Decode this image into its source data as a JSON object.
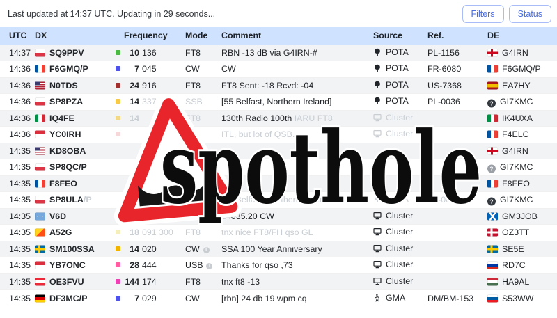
{
  "header": {
    "last_updated": "Last updated at 14:37 UTC. Updating in 29 seconds...",
    "filters_label": "Filters",
    "status_label": "Status"
  },
  "table": {
    "columns": [
      "UTC",
      "DX",
      "Frequency",
      "Mode",
      "Comment",
      "Source",
      "Ref.",
      "DE"
    ],
    "rows": [
      {
        "utc": "14:37",
        "flag": "pl",
        "call": "SQ9PPV",
        "call_suffix": "",
        "band": "#4cb944",
        "mhz": "10",
        "khz": "136",
        "mhz_faded": false,
        "khz_faded": false,
        "mode": "FT8",
        "mode_faded": false,
        "mode_info": false,
        "comment_pre": "",
        "comment": "RBN -13 dB via G4IRN-#",
        "comment_faded": false,
        "comment_tail": "",
        "source": "POTA",
        "source_icon": "tree",
        "source_faded": false,
        "ref": "PL-1156",
        "ref_faded": false,
        "de_flag": "gb-eng",
        "de": "G4IRN"
      },
      {
        "utc": "14:36",
        "flag": "fr",
        "call": "F6GMQ/P",
        "call_suffix": "",
        "band": "#4f52e8",
        "mhz": "7",
        "khz": "045",
        "mhz_faded": false,
        "khz_faded": false,
        "mode": "CW",
        "mode_faded": false,
        "mode_info": false,
        "comment_pre": "",
        "comment": "CW",
        "comment_faded": false,
        "comment_tail": "",
        "source": "POTA",
        "source_icon": "tree",
        "source_faded": false,
        "ref": "FR-6080",
        "ref_faded": false,
        "de_flag": "fr",
        "de": "F6GMQ/P"
      },
      {
        "utc": "14:36",
        "flag": "us",
        "call": "N0TDS",
        "call_suffix": "",
        "band": "#a03030",
        "mhz": "24",
        "khz": "916",
        "mhz_faded": false,
        "khz_faded": false,
        "mode": "FT8",
        "mode_faded": false,
        "mode_info": false,
        "comment_pre": "",
        "comment": "FT8 Sent: -18 Rcvd: -04",
        "comment_faded": false,
        "comment_tail": "",
        "source": "POTA",
        "source_icon": "tree",
        "source_faded": false,
        "ref": "US-7368",
        "ref_faded": false,
        "de_flag": "es",
        "de": "EA7HY"
      },
      {
        "utc": "14:36",
        "flag": "pl",
        "call": "SP8PZA",
        "call_suffix": "",
        "band": "#f7c948",
        "mhz": "14",
        "khz": "337",
        "mhz_faded": false,
        "khz_faded": true,
        "mode": "SSB",
        "mode_faded": true,
        "mode_info": false,
        "comment_pre": "",
        "comment": "[55 Belfast, Northern Ireland]",
        "comment_faded": false,
        "comment_tail": "",
        "source": "POTA",
        "source_icon": "tree",
        "source_faded": false,
        "ref": "PL-0036",
        "ref_faded": false,
        "de_flag": "q-black",
        "de": "GI7KMC"
      },
      {
        "utc": "14:36",
        "flag": "it",
        "call": "IQ4FE",
        "call_suffix": "",
        "band": "#f2d98a",
        "mhz": "14",
        "khz": "",
        "mhz_faded": true,
        "khz_faded": true,
        "mode": "FT8",
        "mode_faded": true,
        "mode_info": false,
        "comment_pre": "",
        "comment": "130th Radio 100th ",
        "comment_faded": false,
        "comment_tail": "IARU FT8",
        "source": "Cluster",
        "source_icon": "monitor",
        "source_faded": true,
        "ref": "",
        "ref_faded": false,
        "de_flag": "it",
        "de": "IK4UXA"
      },
      {
        "utc": "14:36",
        "flag": "id",
        "call": "YC0IRH",
        "call_suffix": "",
        "band": "#f6d7da",
        "mhz": "",
        "khz": "",
        "mhz_faded": true,
        "khz_faded": true,
        "mode": "",
        "mode_faded": true,
        "mode_info": false,
        "comment_pre": "",
        "comment": "ITL, but lot of QSB...",
        "comment_faded": true,
        "comment_tail": "",
        "source": "Cluster",
        "source_icon": "monitor",
        "source_faded": true,
        "ref": "",
        "ref_faded": false,
        "de_flag": "fr",
        "de": "F4ELC"
      },
      {
        "utc": "14:35",
        "flag": "us",
        "call": "KD8OBA",
        "call_suffix": "",
        "band": "",
        "mhz": "",
        "khz": "",
        "mhz_faded": false,
        "khz_faded": false,
        "mode": "",
        "mode_faded": false,
        "mode_info": false,
        "comment_pre": "",
        "comment": "",
        "comment_faded": false,
        "comment_tail": "",
        "source": "",
        "source_icon": "",
        "source_faded": false,
        "ref": "",
        "ref_faded": false,
        "de_flag": "gb-eng",
        "de": "G4IRN"
      },
      {
        "utc": "14:35",
        "flag": "pl",
        "call": "SP8QC/P",
        "call_suffix": "",
        "band": "",
        "mhz": "",
        "khz": "",
        "mhz_faded": false,
        "khz_faded": false,
        "mode": "",
        "mode_faded": false,
        "mode_info": false,
        "comment_pre": "",
        "comment": "",
        "comment_faded": false,
        "comment_tail": "",
        "source": "",
        "source_icon": "",
        "source_faded": false,
        "ref": "",
        "ref_faded": false,
        "de_flag": "q-gray",
        "de": "GI7KMC"
      },
      {
        "utc": "14:35",
        "flag": "fr",
        "call": "F8FEO",
        "call_suffix": "",
        "band": "",
        "mhz": "",
        "khz": "",
        "mhz_faded": false,
        "khz_faded": false,
        "mode": "",
        "mode_faded": false,
        "mode_info": false,
        "comment_pre": "",
        "comment": "",
        "comment_faded": false,
        "comment_tail": "",
        "source": "",
        "source_icon": "",
        "source_faded": false,
        "ref": "",
        "ref_faded": false,
        "de_flag": "fr",
        "de": "F8FEO"
      },
      {
        "utc": "14:35",
        "flag": "pl",
        "call": "SP8ULA",
        "call_suffix": "/P",
        "band": "",
        "mhz": "",
        "khz": "",
        "mhz_faded": false,
        "khz_faded": false,
        "mode": "",
        "mode_faded": false,
        "mode_info": false,
        "comment_pre": "",
        "comment": "[55 Belfast, Northern Ireland]",
        "comment_faded": true,
        "comment_tail": "",
        "source": "POTA",
        "source_icon": "tree",
        "source_faded": true,
        "ref": "PL-0036",
        "ref_faded": true,
        "de_flag": "q-black",
        "de": "GI7KMC"
      },
      {
        "utc": "14:35",
        "flag": "fm",
        "call": "V6D",
        "call_suffix": "",
        "band": "",
        "mhz": "",
        "khz": "",
        "mhz_faded": false,
        "khz_faded": false,
        "mode": "",
        "mode_faded": false,
        "mode_info": false,
        "comment_pre": "14",
        "comment": "035.20 CW",
        "comment_faded": false,
        "comment_tail": "",
        "source": "Cluster",
        "source_icon": "monitor",
        "source_faded": false,
        "ref": "",
        "ref_faded": false,
        "de_flag": "gb-sct",
        "de": "GM3JOB"
      },
      {
        "utc": "14:35",
        "flag": "bt",
        "call": "A52G",
        "call_suffix": "",
        "band": "#f3eebc",
        "mhz": "18",
        "khz": "091 300",
        "mhz_faded": true,
        "khz_faded": true,
        "mode": "FT8",
        "mode_faded": true,
        "mode_info": false,
        "comment_pre": "",
        "comment": "tnx nice FT8/FH qso GL",
        "comment_faded": true,
        "comment_tail": "",
        "source": "Cluster",
        "source_icon": "monitor",
        "source_faded": false,
        "ref": "",
        "ref_faded": false,
        "de_flag": "dk",
        "de": "OZ3TT"
      },
      {
        "utc": "14:35",
        "flag": "se",
        "call": "SM100SSA",
        "call_suffix": "",
        "band": "#f0b400",
        "mhz": "14",
        "khz": "020",
        "mhz_faded": false,
        "khz_faded": false,
        "mode": "CW",
        "mode_faded": false,
        "mode_info": true,
        "comment_pre": "",
        "comment": "SSA 100 Year Anniversary",
        "comment_faded": false,
        "comment_tail": "",
        "source": "Cluster",
        "source_icon": "monitor",
        "source_faded": false,
        "ref": "",
        "ref_faded": false,
        "de_flag": "se",
        "de": "SE5E"
      },
      {
        "utc": "14:35",
        "flag": "id",
        "call": "YB7ONC",
        "call_suffix": "",
        "band": "#ff5fa2",
        "mhz": "28",
        "khz": "444",
        "mhz_faded": false,
        "khz_faded": false,
        "mode": "USB",
        "mode_faded": false,
        "mode_info": true,
        "comment_pre": "",
        "comment": "Thanks for qso ,73",
        "comment_faded": false,
        "comment_tail": "",
        "source": "Cluster",
        "source_icon": "monitor",
        "source_faded": false,
        "ref": "",
        "ref_faded": false,
        "de_flag": "ru",
        "de": "RD7C"
      },
      {
        "utc": "14:35",
        "flag": "at",
        "call": "OE3FVU",
        "call_suffix": "",
        "band": "#ee3fb3",
        "mhz": "144",
        "khz": "174",
        "mhz_faded": false,
        "khz_faded": false,
        "mode": "FT8",
        "mode_faded": false,
        "mode_info": false,
        "comment_pre": "",
        "comment": "tnx ft8 -13",
        "comment_faded": false,
        "comment_tail": "",
        "source": "Cluster",
        "source_icon": "monitor",
        "source_faded": false,
        "ref": "",
        "ref_faded": false,
        "de_flag": "hu",
        "de": "HA9AL"
      },
      {
        "utc": "14:35",
        "flag": "de",
        "call": "DF3MC/P",
        "call_suffix": "",
        "band": "#4f52e8",
        "mhz": "7",
        "khz": "029",
        "mhz_faded": false,
        "khz_faded": false,
        "mode": "CW",
        "mode_faded": false,
        "mode_info": false,
        "comment_pre": "",
        "comment": "[rbn] 24 db 19 wpm cq",
        "comment_faded": false,
        "comment_tail": "",
        "source": "GMA",
        "source_icon": "hiker",
        "source_faded": false,
        "ref": "DM/BM-153",
        "ref_faded": false,
        "de_flag": "si",
        "de": "S53WW"
      }
    ]
  },
  "watermark": {
    "text": "spothole",
    "sign_red": "#e8252b"
  }
}
